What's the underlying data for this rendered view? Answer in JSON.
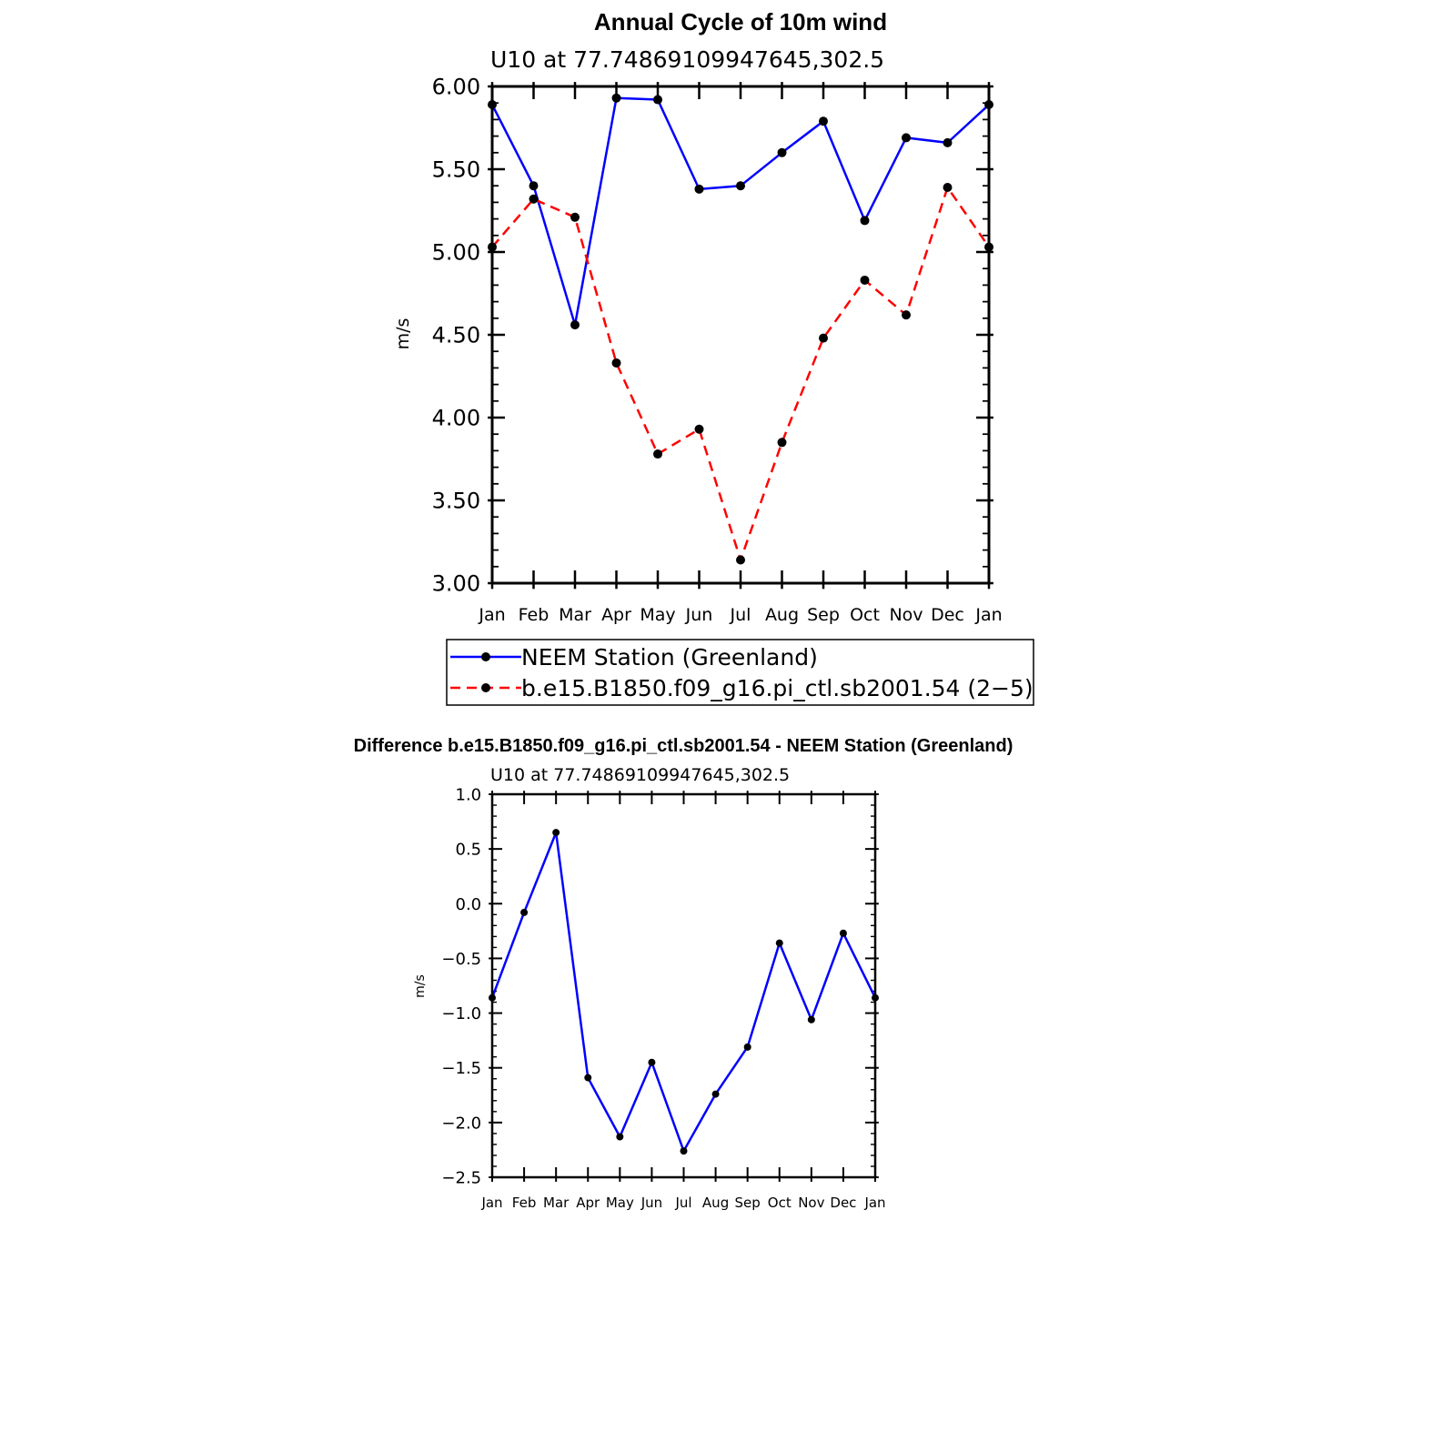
{
  "chart_data": [
    {
      "type": "line",
      "title": "Annual Cycle of 10m wind",
      "subtitle": "U10 at 77.74869109947645,302.5",
      "xlabel": "",
      "ylabel": "m/s",
      "categories": [
        "Jan",
        "Feb",
        "Mar",
        "Apr",
        "May",
        "Jun",
        "Jul",
        "Aug",
        "Sep",
        "Oct",
        "Nov",
        "Dec",
        "Jan"
      ],
      "ylim": [
        3.0,
        6.0
      ],
      "yticks": [
        "3.00",
        "3.50",
        "4.00",
        "4.50",
        "5.00",
        "5.50",
        "6.00"
      ],
      "series": [
        {
          "name": "NEEM Station (Greenland)",
          "color": "#0000ff",
          "dash": "solid",
          "values": [
            5.89,
            5.4,
            4.56,
            5.93,
            5.92,
            5.38,
            5.4,
            5.6,
            5.79,
            5.19,
            5.69,
            5.66,
            5.89
          ]
        },
        {
          "name": "b.e15.B1850.f09_g16.pi_ctl.sb2001.54 (2−5)",
          "color": "#ff0000",
          "dash": "dashed",
          "values": [
            5.03,
            5.32,
            5.21,
            4.33,
            3.78,
            3.93,
            3.14,
            3.85,
            4.48,
            4.83,
            4.62,
            5.39,
            5.03
          ]
        }
      ],
      "legend": "bottom"
    },
    {
      "type": "line",
      "title": "Difference b.e15.B1850.f09_g16.pi_ctl.sb2001.54 - NEEM Station (Greenland)",
      "subtitle": "U10 at 77.74869109947645,302.5",
      "xlabel": "",
      "ylabel": "m/s",
      "categories": [
        "Jan",
        "Feb",
        "Mar",
        "Apr",
        "May",
        "Jun",
        "Jul",
        "Aug",
        "Sep",
        "Oct",
        "Nov",
        "Dec",
        "Jan"
      ],
      "ylim": [
        -2.5,
        1.0
      ],
      "yticks": [
        "−2.5",
        "−2.0",
        "−1.5",
        "−1.0",
        "−0.5",
        "0.0",
        "0.5",
        "1.0"
      ],
      "series": [
        {
          "name": "Difference",
          "color": "#0000ff",
          "dash": "solid",
          "values": [
            -0.86,
            -0.08,
            0.65,
            -1.59,
            -2.13,
            -1.45,
            -2.26,
            -1.74,
            -1.31,
            -0.36,
            -1.06,
            -0.27,
            -0.86
          ]
        }
      ]
    }
  ]
}
